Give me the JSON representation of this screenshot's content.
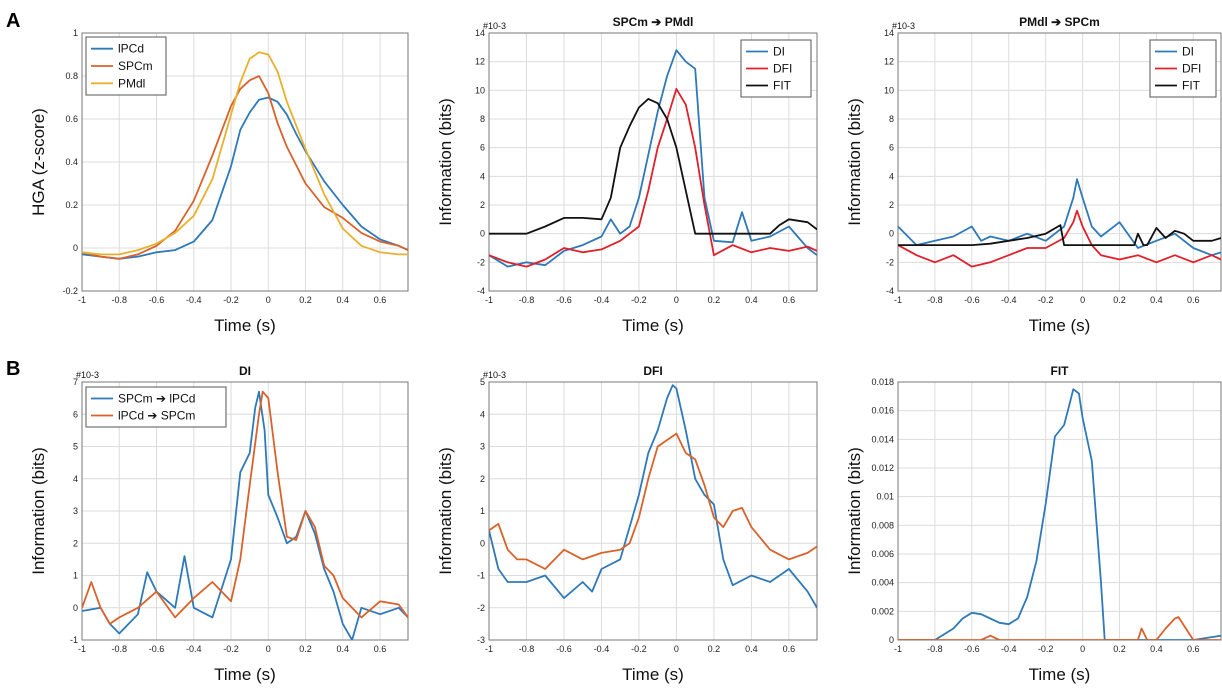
{
  "colors": {
    "blue": "#2e79b9",
    "orange": "#d9622b",
    "yellow": "#e9b02f",
    "red": "#e0202a",
    "black": "#111111",
    "grid": "#dcdcdc"
  },
  "panel_labels": [
    "A",
    "B"
  ],
  "chart_data": [
    {
      "type": "line",
      "title": "",
      "xlabel": "Time (s)",
      "ylabel": "HGA (z-score)",
      "scale_note": "",
      "xlim": [
        -1,
        0.75
      ],
      "ylim": [
        -0.2,
        1
      ],
      "xticks": [
        "-1",
        "-0.8",
        "-0.6",
        "-0.4",
        "-0.2",
        "0",
        "0.2",
        "0.4",
        "0.6"
      ],
      "yticks": [
        "-0.2",
        "0",
        "0.2",
        "0.4",
        "0.6",
        "0.8",
        "1"
      ],
      "grid": true,
      "legend_position": "top-left",
      "series": [
        {
          "name": "lPCd",
          "color": "#2e79b9",
          "x": [
            -1,
            -0.9,
            -0.8,
            -0.7,
            -0.6,
            -0.5,
            -0.4,
            -0.3,
            -0.2,
            -0.15,
            -0.1,
            -0.05,
            0,
            0.05,
            0.1,
            0.15,
            0.2,
            0.3,
            0.4,
            0.5,
            0.6,
            0.7,
            0.75
          ],
          "y": [
            -0.03,
            -0.04,
            -0.05,
            -0.04,
            -0.02,
            -0.01,
            0.03,
            0.13,
            0.38,
            0.55,
            0.63,
            0.69,
            0.7,
            0.68,
            0.62,
            0.53,
            0.45,
            0.31,
            0.2,
            0.1,
            0.04,
            0.01,
            -0.01
          ]
        },
        {
          "name": "SPCm",
          "color": "#d9622b",
          "x": [
            -1,
            -0.9,
            -0.8,
            -0.7,
            -0.6,
            -0.5,
            -0.4,
            -0.3,
            -0.2,
            -0.15,
            -0.1,
            -0.05,
            0,
            0.05,
            0.1,
            0.2,
            0.3,
            0.4,
            0.5,
            0.6,
            0.7,
            0.75
          ],
          "y": [
            -0.02,
            -0.04,
            -0.05,
            -0.03,
            0.01,
            0.08,
            0.22,
            0.43,
            0.66,
            0.74,
            0.78,
            0.8,
            0.72,
            0.58,
            0.47,
            0.3,
            0.19,
            0.14,
            0.07,
            0.03,
            0.01,
            -0.01
          ]
        },
        {
          "name": "PMdl",
          "color": "#e9b02f",
          "x": [
            -1,
            -0.9,
            -0.8,
            -0.7,
            -0.6,
            -0.5,
            -0.4,
            -0.3,
            -0.2,
            -0.15,
            -0.1,
            -0.05,
            0,
            0.05,
            0.1,
            0.2,
            0.3,
            0.4,
            0.5,
            0.6,
            0.7,
            0.75
          ],
          "y": [
            -0.02,
            -0.03,
            -0.03,
            -0.01,
            0.02,
            0.07,
            0.15,
            0.32,
            0.62,
            0.77,
            0.88,
            0.91,
            0.9,
            0.82,
            0.68,
            0.46,
            0.25,
            0.09,
            0.01,
            -0.02,
            -0.03,
            -0.03
          ]
        }
      ]
    },
    {
      "type": "line",
      "title": "SPCm ➔ PMdl",
      "xlabel": "Time (s)",
      "ylabel": "Information (bits)",
      "scale_note": "#10-3",
      "xlim": [
        -1,
        0.75
      ],
      "ylim": [
        -4,
        14
      ],
      "xticks": [
        "-1",
        "-0.8",
        "-0.6",
        "-0.4",
        "-0.2",
        "0",
        "0.2",
        "0.4",
        "0.6"
      ],
      "yticks": [
        "-4",
        "-2",
        "0",
        "2",
        "4",
        "6",
        "8",
        "10",
        "12",
        "14"
      ],
      "grid": true,
      "legend_position": "top-right",
      "series": [
        {
          "name": "DI",
          "color": "#2e79b9",
          "x": [
            -1,
            -0.9,
            -0.8,
            -0.7,
            -0.6,
            -0.5,
            -0.4,
            -0.35,
            -0.3,
            -0.25,
            -0.2,
            -0.15,
            -0.1,
            -0.05,
            0,
            0.05,
            0.1,
            0.15,
            0.2,
            0.3,
            0.35,
            0.4,
            0.5,
            0.6,
            0.7,
            0.75
          ],
          "y": [
            -1.5,
            -2.3,
            -2,
            -2.2,
            -1.2,
            -0.8,
            -0.2,
            1,
            0,
            0.5,
            2.5,
            5.5,
            8.5,
            11,
            12.8,
            12,
            11.5,
            2.5,
            -0.5,
            -0.6,
            1.5,
            -0.5,
            -0.2,
            0.5,
            -1,
            -1.5
          ]
        },
        {
          "name": "DFI",
          "color": "#e0202a",
          "x": [
            -1,
            -0.9,
            -0.8,
            -0.7,
            -0.6,
            -0.5,
            -0.4,
            -0.3,
            -0.2,
            -0.15,
            -0.1,
            -0.05,
            0,
            0.05,
            0.1,
            0.15,
            0.2,
            0.3,
            0.4,
            0.5,
            0.6,
            0.7,
            0.75
          ],
          "y": [
            -1.5,
            -2,
            -2.3,
            -1.8,
            -1,
            -1.3,
            -1.1,
            -0.5,
            0.5,
            3,
            6,
            8,
            10.1,
            9,
            6,
            2,
            -1.5,
            -0.8,
            -1.3,
            -1,
            -1.2,
            -0.9,
            -1.2
          ]
        },
        {
          "name": "FIT",
          "color": "#111111",
          "x": [
            -1,
            -0.8,
            -0.7,
            -0.6,
            -0.5,
            -0.4,
            -0.35,
            -0.3,
            -0.25,
            -0.2,
            -0.15,
            -0.1,
            -0.05,
            0,
            0.05,
            0.1,
            0.2,
            0.3,
            0.4,
            0.5,
            0.55,
            0.6,
            0.7,
            0.75
          ],
          "y": [
            0,
            0,
            0.5,
            1.1,
            1.1,
            1,
            2.5,
            6,
            7.5,
            8.8,
            9.4,
            9.1,
            8,
            6,
            3,
            0,
            0,
            0,
            0,
            0,
            0.6,
            1,
            0.8,
            0.3
          ]
        }
      ]
    },
    {
      "type": "line",
      "title": "PMdl ➔ SPCm",
      "xlabel": "Time (s)",
      "ylabel": "Information (bits)",
      "scale_note": "#10-3",
      "xlim": [
        -1,
        0.75
      ],
      "ylim": [
        -4,
        14
      ],
      "xticks": [
        "-1",
        "-0.8",
        "-0.6",
        "-0.4",
        "-0.2",
        "0",
        "0.2",
        "0.4",
        "0.6"
      ],
      "yticks": [
        "-4",
        "-2",
        "0",
        "2",
        "4",
        "6",
        "8",
        "10",
        "12",
        "14"
      ],
      "grid": true,
      "legend_position": "top-right",
      "series": [
        {
          "name": "DI",
          "color": "#2e79b9",
          "x": [
            -1,
            -0.9,
            -0.8,
            -0.7,
            -0.6,
            -0.55,
            -0.5,
            -0.4,
            -0.3,
            -0.2,
            -0.1,
            -0.05,
            -0.03,
            0,
            0.05,
            0.1,
            0.2,
            0.3,
            0.4,
            0.5,
            0.6,
            0.7,
            0.75
          ],
          "y": [
            0.5,
            -0.8,
            -0.5,
            -0.2,
            0.5,
            -0.5,
            -0.2,
            -0.5,
            0,
            -0.5,
            0.5,
            2.5,
            3.8,
            2.5,
            0.5,
            -0.2,
            0.8,
            -1,
            -0.5,
            0,
            -1,
            -1.5,
            -1.3
          ]
        },
        {
          "name": "DFI",
          "color": "#e0202a",
          "x": [
            -1,
            -0.9,
            -0.8,
            -0.7,
            -0.6,
            -0.5,
            -0.4,
            -0.3,
            -0.2,
            -0.1,
            -0.05,
            -0.03,
            0,
            0.05,
            0.1,
            0.2,
            0.3,
            0.4,
            0.5,
            0.6,
            0.7,
            0.75
          ],
          "y": [
            -0.8,
            -1.5,
            -2,
            -1.5,
            -2.3,
            -2,
            -1.5,
            -1,
            -1,
            -0.3,
            0.8,
            1.6,
            0.5,
            -0.8,
            -1.5,
            -1.8,
            -1.5,
            -2,
            -1.5,
            -2,
            -1.5,
            -1.8
          ]
        },
        {
          "name": "FIT",
          "color": "#111111",
          "x": [
            -1,
            -0.8,
            -0.6,
            -0.5,
            -0.4,
            -0.3,
            -0.2,
            -0.12,
            -0.1,
            -0.05,
            0,
            0.2,
            0.28,
            0.3,
            0.33,
            0.35,
            0.4,
            0.45,
            0.5,
            0.55,
            0.6,
            0.7,
            0.75
          ],
          "y": [
            -0.8,
            -0.8,
            -0.8,
            -0.7,
            -0.5,
            -0.3,
            0,
            0.6,
            -0.8,
            -0.8,
            -0.8,
            -0.8,
            -0.8,
            0,
            -0.8,
            -0.8,
            0.4,
            -0.3,
            0.2,
            0,
            -0.5,
            -0.5,
            -0.3
          ]
        }
      ]
    },
    {
      "type": "line",
      "title": "DI",
      "xlabel": "Time (s)",
      "ylabel": "Information (bits)",
      "scale_note": "#10-3",
      "xlim": [
        -1,
        0.75
      ],
      "ylim": [
        -1,
        7
      ],
      "xticks": [
        "-1",
        "-0.8",
        "-0.6",
        "-0.4",
        "-0.2",
        "0",
        "0.2",
        "0.4",
        "0.6"
      ],
      "yticks": [
        "-1",
        "0",
        "1",
        "2",
        "3",
        "4",
        "5",
        "6",
        "7"
      ],
      "grid": true,
      "legend_position": "top-left",
      "series": [
        {
          "name": "SPCm ➔ lPCd",
          "color": "#2e79b9",
          "x": [
            -1,
            -0.9,
            -0.85,
            -0.8,
            -0.7,
            -0.65,
            -0.6,
            -0.5,
            -0.45,
            -0.4,
            -0.3,
            -0.2,
            -0.15,
            -0.1,
            -0.07,
            -0.05,
            -0.02,
            0,
            0.05,
            0.1,
            0.15,
            0.2,
            0.25,
            0.3,
            0.35,
            0.4,
            0.45,
            0.5,
            0.6,
            0.7,
            0.75
          ],
          "y": [
            -0.1,
            0,
            -0.5,
            -0.8,
            -0.2,
            1.1,
            0.5,
            0,
            1.6,
            0,
            -0.3,
            1.5,
            4.2,
            4.8,
            6.2,
            6.7,
            5.5,
            3.5,
            2.8,
            2,
            2.2,
            3,
            2.3,
            1.2,
            0.5,
            -0.5,
            -1,
            0,
            -0.2,
            0,
            -0.3
          ]
        },
        {
          "name": "lPCd ➔ SPCm",
          "color": "#d9622b",
          "x": [
            -1,
            -0.95,
            -0.9,
            -0.85,
            -0.8,
            -0.7,
            -0.6,
            -0.5,
            -0.4,
            -0.3,
            -0.25,
            -0.2,
            -0.15,
            -0.1,
            -0.05,
            -0.03,
            0,
            0.05,
            0.1,
            0.15,
            0.2,
            0.25,
            0.3,
            0.35,
            0.4,
            0.5,
            0.6,
            0.7,
            0.75
          ],
          "y": [
            0,
            0.8,
            0,
            -0.5,
            -0.3,
            0,
            0.5,
            -0.3,
            0.3,
            0.8,
            0.5,
            0.2,
            1.5,
            3.8,
            6,
            6.7,
            6.5,
            4.2,
            2.2,
            2.1,
            3,
            2.5,
            1.3,
            1,
            0.3,
            -0.3,
            0.2,
            0.1,
            -0.3
          ]
        }
      ]
    },
    {
      "type": "line",
      "title": "DFI",
      "xlabel": "Time (s)",
      "ylabel": "Information (bits)",
      "scale_note": "#10-3",
      "xlim": [
        -1,
        0.75
      ],
      "ylim": [
        -3,
        5
      ],
      "xticks": [
        "-1",
        "-0.8",
        "-0.6",
        "-0.4",
        "-0.2",
        "0",
        "0.2",
        "0.4",
        "0.6"
      ],
      "yticks": [
        "-3",
        "-2",
        "-1",
        "0",
        "1",
        "2",
        "3",
        "4",
        "5"
      ],
      "grid": true,
      "legend_position": "none",
      "series": [
        {
          "name": "",
          "color": "#2e79b9",
          "x": [
            -1,
            -0.95,
            -0.9,
            -0.8,
            -0.7,
            -0.6,
            -0.5,
            -0.45,
            -0.4,
            -0.3,
            -0.25,
            -0.2,
            -0.15,
            -0.1,
            -0.05,
            -0.02,
            0,
            0.05,
            0.1,
            0.15,
            0.2,
            0.25,
            0.3,
            0.4,
            0.5,
            0.6,
            0.7,
            0.75
          ],
          "y": [
            0.4,
            -0.8,
            -1.2,
            -1.2,
            -1,
            -1.7,
            -1.2,
            -1.5,
            -0.8,
            -0.5,
            0.5,
            1.5,
            2.8,
            3.5,
            4.5,
            4.9,
            4.8,
            3.5,
            2,
            1.5,
            1.2,
            -0.5,
            -1.3,
            -1,
            -1.2,
            -0.8,
            -1.5,
            -2
          ]
        },
        {
          "name": "",
          "color": "#d9622b",
          "x": [
            -1,
            -0.95,
            -0.9,
            -0.85,
            -0.8,
            -0.7,
            -0.6,
            -0.5,
            -0.4,
            -0.3,
            -0.25,
            -0.2,
            -0.15,
            -0.1,
            -0.05,
            0,
            0.05,
            0.1,
            0.15,
            0.2,
            0.25,
            0.3,
            0.35,
            0.4,
            0.5,
            0.6,
            0.7,
            0.75
          ],
          "y": [
            0.4,
            0.6,
            -0.2,
            -0.5,
            -0.5,
            -0.8,
            -0.2,
            -0.5,
            -0.3,
            -0.2,
            0,
            0.8,
            2,
            3,
            3.2,
            3.4,
            2.8,
            2.6,
            1.8,
            0.8,
            0.5,
            1,
            1.1,
            0.5,
            -0.2,
            -0.5,
            -0.3,
            -0.1
          ]
        }
      ]
    },
    {
      "type": "line",
      "title": "FIT",
      "xlabel": "Time (s)",
      "ylabel": "Information (bits)",
      "scale_note": "",
      "xlim": [
        -1,
        0.75
      ],
      "ylim": [
        0,
        0.018
      ],
      "xticks": [
        "-1",
        "-0.8",
        "-0.6",
        "-0.4",
        "-0.2",
        "0",
        "0.2",
        "0.4",
        "0.6"
      ],
      "yticks": [
        "0",
        "0.002",
        "0.004",
        "0.006",
        "0.008",
        "0.01",
        "0.012",
        "0.014",
        "0.016",
        "0.018"
      ],
      "grid": true,
      "legend_position": "none",
      "series": [
        {
          "name": "",
          "color": "#2e79b9",
          "x": [
            -1,
            -0.8,
            -0.7,
            -0.65,
            -0.6,
            -0.55,
            -0.5,
            -0.45,
            -0.4,
            -0.35,
            -0.3,
            -0.25,
            -0.2,
            -0.15,
            -0.1,
            -0.07,
            -0.05,
            -0.02,
            0,
            0.05,
            0.1,
            0.12,
            0.2,
            0.4,
            0.6,
            0.7,
            0.75
          ],
          "y": [
            0,
            0,
            0.0008,
            0.0015,
            0.0019,
            0.0018,
            0.0015,
            0.0012,
            0.0011,
            0.0015,
            0.003,
            0.0055,
            0.0095,
            0.0142,
            0.015,
            0.0165,
            0.0175,
            0.0172,
            0.0155,
            0.0125,
            0.004,
            0,
            0,
            0,
            0,
            0.0002,
            0.0003
          ]
        },
        {
          "name": "",
          "color": "#d9622b",
          "x": [
            -1,
            -0.6,
            -0.55,
            -0.5,
            -0.45,
            -0.4,
            -0.1,
            0.2,
            0.3,
            0.32,
            0.35,
            0.4,
            0.45,
            0.5,
            0.52,
            0.55,
            0.6,
            0.7,
            0.75
          ],
          "y": [
            0,
            0,
            0,
            0.0003,
            0,
            0,
            0,
            0,
            0,
            0.0008,
            0,
            0,
            0.0008,
            0.0015,
            0.0016,
            0.001,
            0,
            0,
            0
          ]
        }
      ]
    }
  ]
}
